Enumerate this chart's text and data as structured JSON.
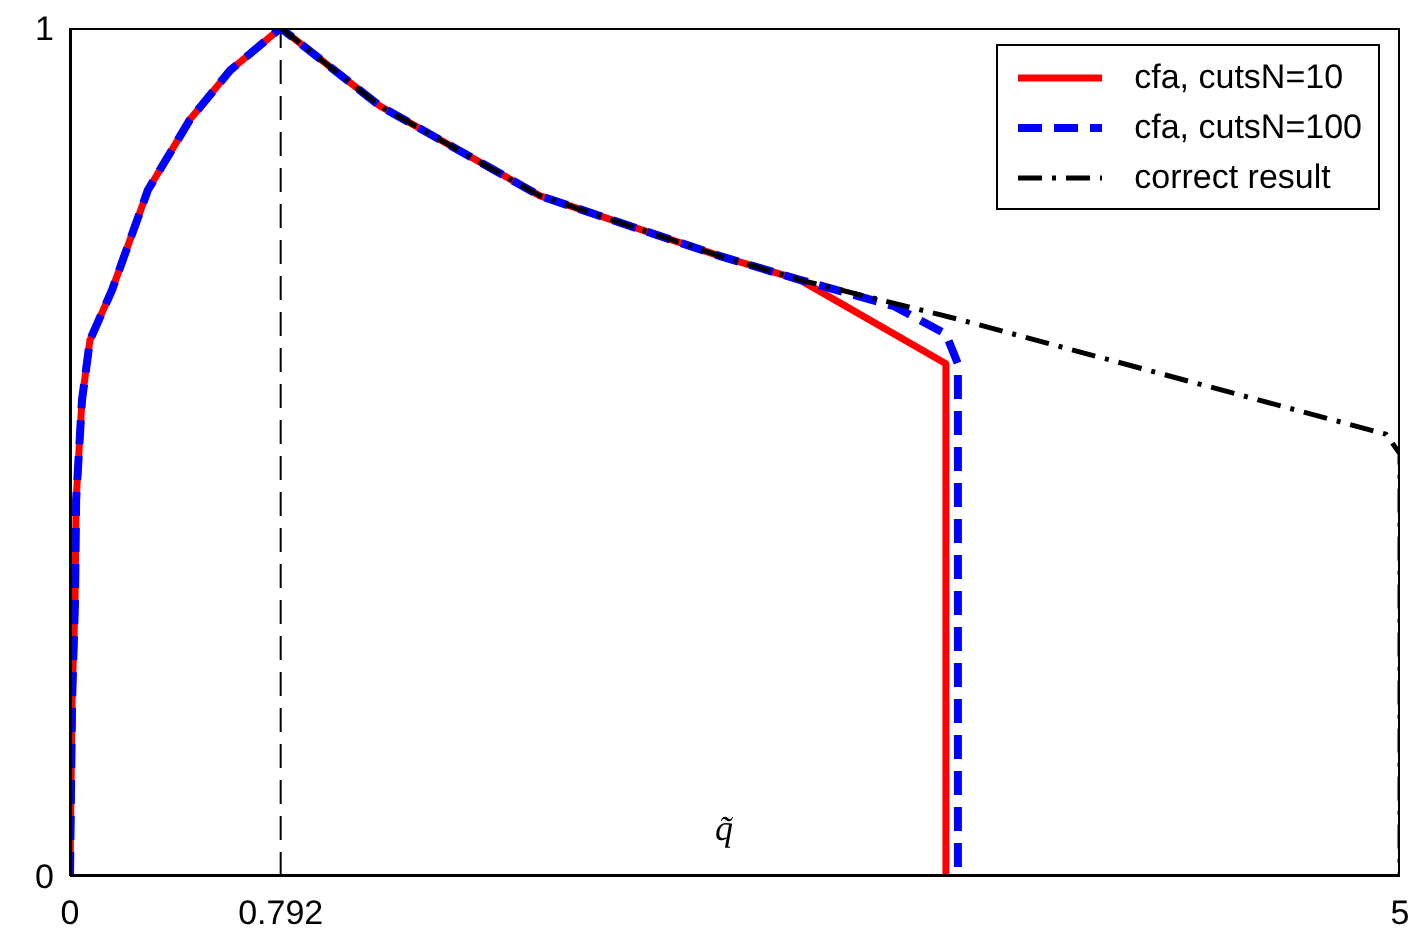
{
  "chart_data": {
    "type": "line",
    "xlabel": "q̃",
    "xlim": [
      0,
      5
    ],
    "ylim": [
      0,
      1
    ],
    "xticks": [
      0,
      0.792,
      5
    ],
    "yticks": [
      0,
      1
    ],
    "legend": "top right",
    "marker": "none",
    "ref_lines": [
      {
        "axis": "x",
        "value": 0.792,
        "color": "#000000",
        "line_style": "dashed"
      }
    ],
    "series": [
      {
        "name": "cfa, cutsN=10",
        "color": "#ff0000",
        "line_style": "solid",
        "x": [
          0,
          0.008,
          0.019,
          0.023,
          0.045,
          0.075,
          0.158,
          0.293,
          0.451,
          0.602,
          0.792,
          1.165,
          1.767,
          2.444,
          2.744,
          3.293,
          3.293
        ],
        "values": [
          0,
          0.208,
          0.325,
          0.443,
          0.561,
          0.632,
          0.691,
          0.809,
          0.892,
          0.95,
          1,
          0.908,
          0.802,
          0.731,
          0.703,
          0.604,
          0
        ]
      },
      {
        "name": "cfa, cutsN=100",
        "color": "#0000ff",
        "line_style": "dashed",
        "x": [
          0,
          0.008,
          0.019,
          0.023,
          0.045,
          0.075,
          0.158,
          0.293,
          0.451,
          0.602,
          0.792,
          1.165,
          1.767,
          2.444,
          2.744,
          3.098,
          3.293,
          3.338,
          3.338
        ],
        "values": [
          0,
          0.208,
          0.325,
          0.443,
          0.561,
          0.632,
          0.691,
          0.809,
          0.892,
          0.95,
          1,
          0.908,
          0.802,
          0.731,
          0.703,
          0.672,
          0.639,
          0.604,
          0
        ]
      },
      {
        "name": "correct result",
        "color": "#000000",
        "line_style": "dashdot",
        "x": [
          0.792,
          1.165,
          1.767,
          2.444,
          2.744,
          3.346,
          4.947,
          5,
          5
        ],
        "values": [
          1,
          0.908,
          0.802,
          0.731,
          0.703,
          0.656,
          0.521,
          0.498,
          0
        ]
      }
    ]
  }
}
